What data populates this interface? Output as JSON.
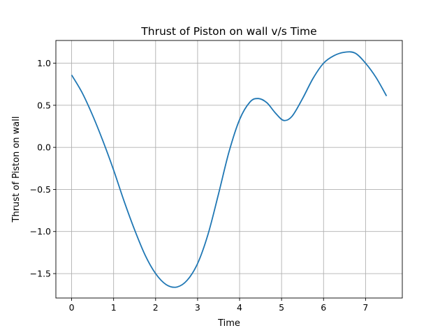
{
  "chart_data": {
    "type": "line",
    "title": "Thrust of Piston on wall v/s Time",
    "xlabel": "Time",
    "ylabel": "Thrust of Piston on wall",
    "xlim": [
      -0.375,
      7.875
    ],
    "ylim": [
      -1.79,
      1.27
    ],
    "xticks": [
      0,
      1,
      2,
      3,
      4,
      5,
      6,
      7
    ],
    "yticks": [
      -1.5,
      -1.0,
      -0.5,
      0.0,
      0.5,
      1.0
    ],
    "xtick_labels": [
      "0",
      "1",
      "2",
      "3",
      "4",
      "5",
      "6",
      "7"
    ],
    "ytick_labels": [
      "−1.5",
      "−1.0",
      "−0.5",
      "0.0",
      "0.5",
      "1.0"
    ],
    "grid": true,
    "line_color": "#1f77b4",
    "series": [
      {
        "x": [
          0.0,
          0.25,
          0.5,
          0.75,
          1.0,
          1.25,
          1.5,
          1.75,
          2.0,
          2.25,
          2.5,
          2.75,
          3.0,
          3.25,
          3.5,
          3.75,
          4.0,
          4.25,
          4.45,
          4.65,
          4.85,
          5.05,
          5.25,
          5.5,
          5.75,
          6.0,
          6.25,
          6.5,
          6.75,
          7.0,
          7.25,
          7.5
        ],
        "y": [
          0.86,
          0.65,
          0.38,
          0.07,
          -0.27,
          -0.64,
          -0.98,
          -1.28,
          -1.5,
          -1.63,
          -1.66,
          -1.58,
          -1.38,
          -1.03,
          -0.55,
          -0.05,
          0.33,
          0.54,
          0.58,
          0.53,
          0.41,
          0.32,
          0.37,
          0.58,
          0.82,
          1.0,
          1.09,
          1.13,
          1.12,
          1.0,
          0.83,
          0.61
        ]
      }
    ]
  }
}
